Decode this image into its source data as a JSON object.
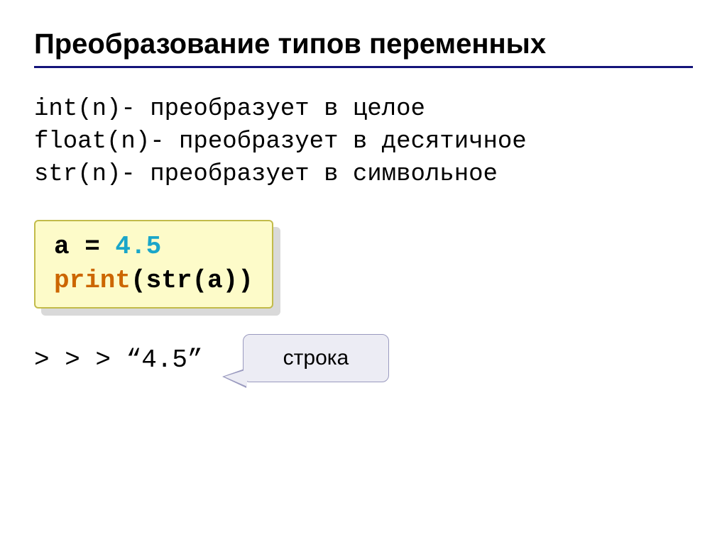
{
  "title": "Преобразование типов  переменных",
  "descriptions": {
    "int": "int(n)- преобразует в целое",
    "float": "float(n)- преобразует в десятичное",
    "str": "str(n)- преобразует в символьное"
  },
  "code": {
    "line1_var": "a",
    "line1_eq": " = ",
    "line1_val": "4.5",
    "line2_kw": "print",
    "line2_rest": "(str(a))"
  },
  "output": "> > > “4.5”",
  "callout": "строка",
  "colors": {
    "underline": "#14147a",
    "codebox_bg": "#fdfbc9",
    "codebox_border": "#c2bb4a",
    "shadow": "#d9d9d9",
    "number": "#1aa6c9",
    "keyword": "#cc6600",
    "callout_bg": "#ececf4",
    "callout_border": "#9a9abf"
  },
  "typography": {
    "title_fontsize": 40,
    "mono_fontsize": 34,
    "code_fontsize": 36,
    "callout_fontsize": 30
  }
}
